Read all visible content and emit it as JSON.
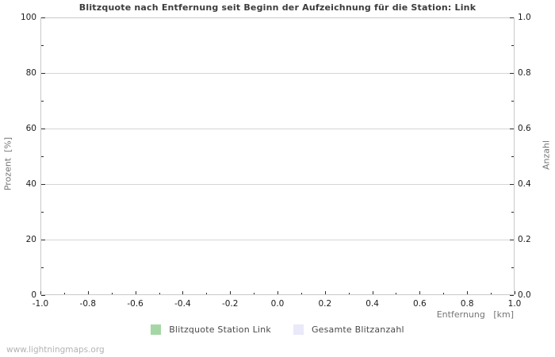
{
  "title": "Blitzquote nach Entfernung seit Beginn der Aufzeichnung für die Station: Link",
  "watermark": "www.lightningmaps.org",
  "axes": {
    "left": {
      "label": "Prozent  [%]",
      "ticks": [
        "100",
        "80",
        "60",
        "40",
        "20",
        "0"
      ]
    },
    "right": {
      "label": "Anzahl",
      "ticks": [
        "1.0",
        "0.8",
        "0.6",
        "0.4",
        "0.2",
        "0.0"
      ]
    },
    "x": {
      "label": "Entfernung   [km]",
      "ticks": [
        "-1.0",
        "-0.8",
        "-0.6",
        "-0.4",
        "-0.2",
        "0.0",
        "0.2",
        "0.4",
        "0.6",
        "0.8",
        "1.0"
      ]
    }
  },
  "legend": [
    {
      "label": "Blitzquote Station Link",
      "color": "#a5d6a5"
    },
    {
      "label": "Gesamte Blitzanzahl",
      "color": "#e9e9fa"
    }
  ],
  "chart_data": {
    "type": "bar",
    "title": "Blitzquote nach Entfernung seit Beginn der Aufzeichnung für die Station: Link",
    "xlabel": "Entfernung [km]",
    "ylabel_left": "Prozent [%]",
    "ylabel_right": "Anzahl",
    "xlim": [
      -1.0,
      1.0
    ],
    "x_tick_step": 0.2,
    "ylim_left": [
      0,
      100
    ],
    "y_left_tick_step": 20,
    "ylim_right": [
      0.0,
      1.0
    ],
    "y_right_tick_step": 0.2,
    "grid": "horizontal-major-only",
    "legend_position": "bottom-center",
    "series": [
      {
        "name": "Blitzquote Station Link",
        "color": "#a5d6a5",
        "x": [],
        "values": []
      },
      {
        "name": "Gesamte Blitzanzahl",
        "color": "#e9e9fa",
        "x": [],
        "values": []
      }
    ],
    "note": "plot area is empty - no data points rendered"
  }
}
